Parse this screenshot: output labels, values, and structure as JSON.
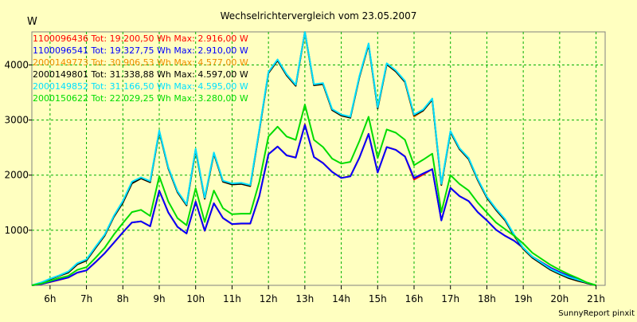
{
  "chart_data": {
    "type": "line",
    "title": "Wechselrichtervergleich vom 23.05.2007",
    "ylabel": "W",
    "xlabel": "",
    "footer": "SunnyReport pinxit",
    "xlim": [
      5.5,
      21.25
    ],
    "ylim": [
      0,
      4600
    ],
    "grid": true,
    "legend_position": "top-left",
    "x_ticks": [
      6,
      7,
      8,
      9,
      10,
      11,
      12,
      13,
      14,
      15,
      16,
      17,
      18,
      19,
      20,
      21
    ],
    "x_tick_labels": [
      "6h",
      "7h",
      "8h",
      "9h",
      "10h",
      "11h",
      "12h",
      "13h",
      "14h",
      "15h",
      "16h",
      "17h",
      "18h",
      "19h",
      "20h",
      "21h"
    ],
    "y_ticks": [
      1000,
      2000,
      3000,
      4000
    ],
    "y_tick_labels": [
      "1000",
      "2000",
      "3000",
      "4000"
    ],
    "x": [
      5.5,
      5.75,
      6,
      6.25,
      6.5,
      6.75,
      7,
      7.25,
      7.5,
      7.75,
      8,
      8.25,
      8.5,
      8.75,
      9,
      9.25,
      9.5,
      9.75,
      10,
      10.25,
      10.5,
      10.75,
      11,
      11.25,
      11.5,
      11.75,
      12,
      12.25,
      12.5,
      12.75,
      13,
      13.25,
      13.5,
      13.75,
      14,
      14.25,
      14.5,
      14.75,
      15,
      15.25,
      15.5,
      15.75,
      16,
      16.25,
      16.5,
      16.75,
      17,
      17.25,
      17.5,
      17.75,
      18,
      18.25,
      18.5,
      18.75,
      19,
      19.25,
      19.5,
      19.75,
      20,
      20.25,
      20.5,
      20.75,
      21
    ],
    "series": [
      {
        "name": "1100096436",
        "legend": "1100096436 Tot: 19.200,50 Wh Max: 2.916,00 W",
        "color": "#ff0000",
        "values": [
          0,
          20,
          60,
          100,
          140,
          230,
          270,
          420,
          580,
          770,
          960,
          1140,
          1160,
          1070,
          1720,
          1320,
          1060,
          940,
          1520,
          990,
          1490,
          1220,
          1110,
          1120,
          1120,
          1620,
          2380,
          2520,
          2360,
          2320,
          2920,
          2330,
          2220,
          2060,
          1950,
          1980,
          2320,
          2750,
          2050,
          2510,
          2460,
          2340,
          1920,
          2010,
          2110,
          1180,
          1770,
          1620,
          1530,
          1330,
          1180,
          1010,
          900,
          810,
          680,
          520,
          420,
          320,
          240,
          170,
          110,
          40,
          0
        ]
      },
      {
        "name": "1100096541",
        "legend": "1100096541 Tot: 19.327,75 Wh Max: 2.910,00 W",
        "color": "#0000ff",
        "values": [
          0,
          22,
          62,
          102,
          142,
          232,
          272,
          422,
          582,
          772,
          962,
          1142,
          1162,
          1072,
          1718,
          1322,
          1062,
          942,
          1518,
          992,
          1488,
          1222,
          1112,
          1122,
          1122,
          1622,
          2378,
          2518,
          2358,
          2318,
          2910,
          2328,
          2218,
          2058,
          1948,
          1978,
          2318,
          2748,
          2048,
          2508,
          2458,
          2338,
          1948,
          2030,
          2108,
          1178,
          1768,
          1618,
          1528,
          1328,
          1178,
          1008,
          898,
          808,
          678,
          518,
          418,
          318,
          238,
          168,
          108,
          38,
          0
        ]
      },
      {
        "name": "2000149773",
        "legend": "2000149773 Tot: 30.906,53 Wh Max: 4.577,00 W",
        "color": "#f08c00",
        "values": [
          0,
          40,
          110,
          170,
          230,
          380,
          450,
          680,
          900,
          1240,
          1500,
          1850,
          1940,
          1870,
          2790,
          2120,
          1690,
          1450,
          2460,
          1570,
          2390,
          1880,
          1830,
          1840,
          1800,
          2810,
          3850,
          4080,
          3810,
          3620,
          4577,
          3630,
          3650,
          3180,
          3080,
          3040,
          3780,
          4370,
          3210,
          4010,
          3880,
          3690,
          3060,
          3170,
          3370,
          1820,
          2780,
          2470,
          2290,
          1910,
          1590,
          1370,
          1180,
          900,
          660,
          500,
          390,
          280,
          200,
          130,
          80,
          40,
          0
        ]
      },
      {
        "name": "2000149801",
        "legend": "2000149801 Tot: 31.338,88 Wh Max: 4.597,00 W",
        "color": "#000000",
        "values": [
          0,
          42,
          112,
          172,
          232,
          382,
          452,
          682,
          902,
          1242,
          1502,
          1852,
          1942,
          1872,
          2792,
          2122,
          1692,
          1452,
          2462,
          1572,
          2392,
          1882,
          1832,
          1842,
          1802,
          2812,
          3852,
          4082,
          3812,
          3622,
          4597,
          3632,
          3652,
          3182,
          3082,
          3042,
          3782,
          4372,
          3212,
          4012,
          3882,
          3692,
          3082,
          3172,
          3372,
          1822,
          2782,
          2472,
          2292,
          1912,
          1592,
          1372,
          1182,
          902,
          662,
          502,
          392,
          282,
          202,
          132,
          82,
          42,
          0
        ]
      },
      {
        "name": "2000149852",
        "legend": "2000149852 Tot: 31.166,50 Wh Max: 4.595,00 W",
        "color": "#00e0ff",
        "values": [
          0,
          50,
          120,
          180,
          250,
          400,
          470,
          700,
          920,
          1260,
          1530,
          1880,
          1960,
          1890,
          2810,
          2140,
          1710,
          1470,
          2480,
          1590,
          2410,
          1900,
          1850,
          1860,
          1820,
          2830,
          3870,
          4100,
          3830,
          3640,
          4595,
          3650,
          3670,
          3200,
          3100,
          3060,
          3800,
          4390,
          3230,
          4030,
          3900,
          3710,
          3100,
          3190,
          3390,
          1840,
          2800,
          2490,
          2310,
          1930,
          1610,
          1390,
          1200,
          920,
          680,
          520,
          410,
          300,
          220,
          150,
          100,
          50,
          0
        ]
      },
      {
        "name": "2000150622",
        "legend": "2000150622 Tot: 22.029,25 Wh Max: 3.280,00 W",
        "color": "#00dc00",
        "values": [
          0,
          30,
          80,
          130,
          170,
          280,
          330,
          500,
          680,
          920,
          1130,
          1330,
          1370,
          1260,
          1980,
          1520,
          1220,
          1090,
          1760,
          1150,
          1720,
          1400,
          1290,
          1300,
          1300,
          1880,
          2700,
          2880,
          2700,
          2640,
          3280,
          2640,
          2510,
          2300,
          2210,
          2240,
          2620,
          3060,
          2310,
          2830,
          2770,
          2640,
          2180,
          2280,
          2390,
          1330,
          2000,
          1840,
          1720,
          1500,
          1320,
          1140,
          1020,
          900,
          760,
          590,
          480,
          370,
          280,
          200,
          130,
          50,
          0
        ]
      }
    ]
  }
}
